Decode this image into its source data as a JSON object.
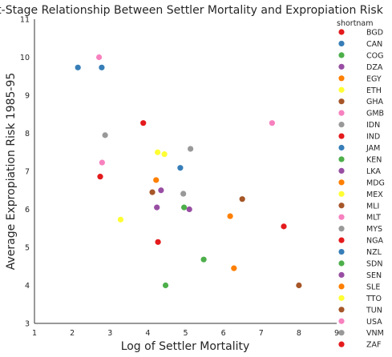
{
  "chart_data": {
    "type": "scatter",
    "title": "First-Stage Relationship Between Settler Mortality and Expropiation Risk",
    "xlabel": "Log of Settler Mortality",
    "ylabel": "Average Expropiation Risk 1985-95",
    "xlim": [
      1,
      9
    ],
    "ylim": [
      3,
      11
    ],
    "xticks": [
      "1",
      "2",
      "3",
      "4",
      "5",
      "6",
      "7",
      "8",
      "9"
    ],
    "yticks": [
      "3",
      "4",
      "5",
      "6",
      "7",
      "8",
      "9",
      "10",
      "11"
    ],
    "grid": false,
    "legend_title": "shortnam",
    "legend_position": "right",
    "series": [
      {
        "name": "BGD",
        "color": "#e41a1c",
        "points": [
          [
            4.27,
            5.14
          ],
          [
            7.6,
            5.55
          ]
        ]
      },
      {
        "name": "CAN",
        "color": "#377eb8",
        "points": [
          [
            2.15,
            9.73
          ],
          [
            2.78,
            9.73
          ]
        ]
      },
      {
        "name": "COG",
        "color": "#4daf4a",
        "points": [
          [
            5.48,
            4.68
          ],
          [
            4.47,
            4.0
          ]
        ]
      },
      {
        "name": "DZA",
        "color": "#984ea3",
        "points": [
          [
            4.35,
            6.5
          ]
        ]
      },
      {
        "name": "EGY",
        "color": "#ff7f00",
        "points": [
          [
            4.22,
            6.77
          ]
        ]
      },
      {
        "name": "ETH",
        "color": "#ffff33",
        "points": [
          [
            4.26,
            7.5
          ]
        ]
      },
      {
        "name": "GHA",
        "color": "#a65628",
        "points": [
          [
            6.5,
            6.27
          ]
        ]
      },
      {
        "name": "GMB",
        "color": "#f781bf",
        "points": [
          [
            7.29,
            8.27
          ]
        ]
      },
      {
        "name": "IDN",
        "color": "#999999",
        "points": [
          [
            2.87,
            7.95
          ]
        ]
      },
      {
        "name": "IND",
        "color": "#e41a1c",
        "points": [
          [
            3.88,
            8.27
          ]
        ]
      },
      {
        "name": "JAM",
        "color": "#377eb8",
        "points": [
          [
            4.86,
            7.09
          ]
        ]
      },
      {
        "name": "KEN",
        "color": "#4daf4a",
        "points": [
          [
            4.96,
            6.05
          ]
        ]
      },
      {
        "name": "LKA",
        "color": "#984ea3",
        "points": [
          [
            4.24,
            6.05
          ]
        ]
      },
      {
        "name": "MDG",
        "color": "#ff7f00",
        "points": [
          [
            6.18,
            5.82
          ]
        ]
      },
      {
        "name": "MEX",
        "color": "#ffff33",
        "points": [
          [
            4.44,
            7.45
          ]
        ]
      },
      {
        "name": "MLI",
        "color": "#a65628",
        "points": [
          [
            4.12,
            6.45
          ]
        ]
      },
      {
        "name": "MLT",
        "color": "#f781bf",
        "points": [
          [
            2.79,
            7.23
          ]
        ]
      },
      {
        "name": "MYS",
        "color": "#999999",
        "points": [
          [
            5.13,
            7.59
          ]
        ]
      },
      {
        "name": "NGA",
        "color": "#e41a1c",
        "points": [
          [
            2.74,
            6.86
          ]
        ]
      },
      {
        "name": "NZL",
        "color": "#377eb8",
        "points": []
      },
      {
        "name": "SDN",
        "color": "#4daf4a",
        "points": []
      },
      {
        "name": "SEN",
        "color": "#984ea3",
        "points": [
          [
            5.1,
            6.0
          ]
        ]
      },
      {
        "name": "SLE",
        "color": "#ff7f00",
        "points": [
          [
            6.28,
            4.45
          ]
        ]
      },
      {
        "name": "TTO",
        "color": "#ffff33",
        "points": [
          [
            3.28,
            5.73
          ]
        ]
      },
      {
        "name": "TUN",
        "color": "#a65628",
        "points": [
          [
            8.0,
            4.0
          ]
        ]
      },
      {
        "name": "USA",
        "color": "#f781bf",
        "points": [
          [
            2.71,
            10.0
          ]
        ]
      },
      {
        "name": "VNM",
        "color": "#999999",
        "points": [
          [
            4.94,
            6.41
          ]
        ]
      },
      {
        "name": "ZAF",
        "color": "#e41a1c",
        "points": []
      }
    ]
  }
}
